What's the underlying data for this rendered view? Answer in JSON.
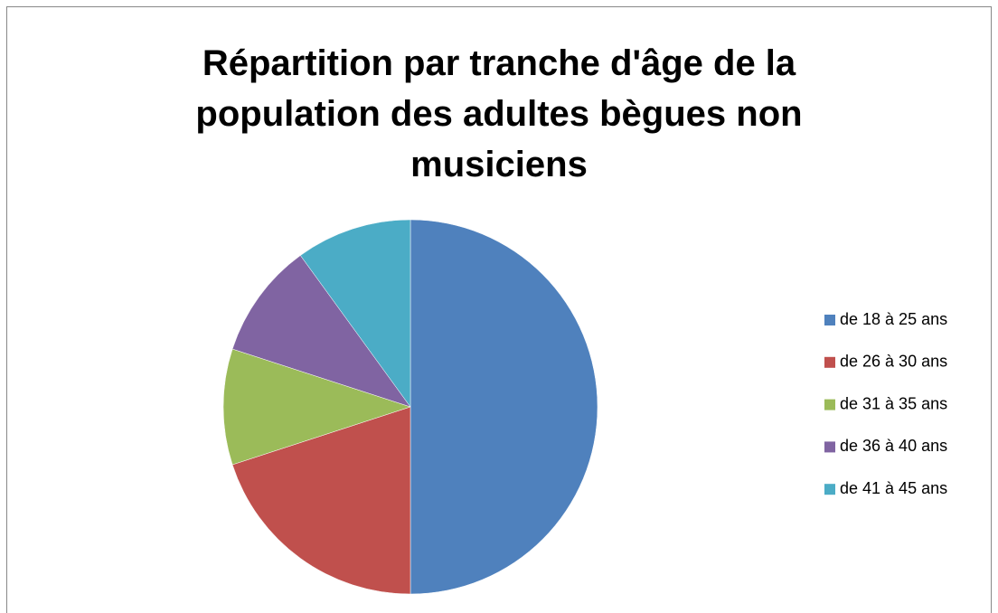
{
  "chart_data": {
    "type": "pie",
    "title": "Répartition par tranche d'âge de la population des adultes bègues non musiciens",
    "categories": [
      "de 18 à 25 ans",
      "de 26 à 30 ans",
      "de 31 à 35 ans",
      "de 36 à 40 ans",
      "de 41 à 45 ans"
    ],
    "values": [
      50,
      20,
      10,
      10,
      10
    ],
    "colors": [
      "#4f81bd",
      "#c0504d",
      "#9bbb59",
      "#8064a2",
      "#4bacc6"
    ],
    "legend": "right"
  }
}
